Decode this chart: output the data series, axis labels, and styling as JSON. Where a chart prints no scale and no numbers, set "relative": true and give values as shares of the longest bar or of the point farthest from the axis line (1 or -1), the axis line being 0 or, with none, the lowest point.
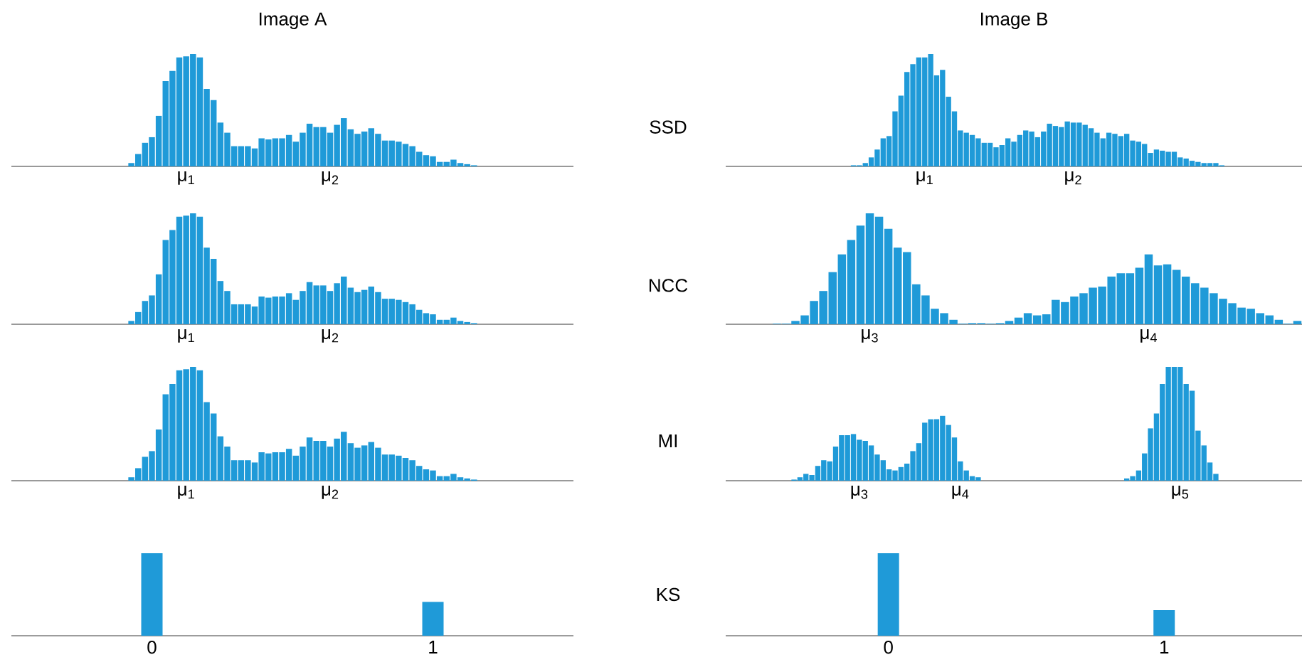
{
  "chart_data": [
    {
      "type": "bar",
      "relative": true,
      "title": "Image A",
      "color": "#1f9ad8",
      "categories": [
        null,
        null,
        null,
        null,
        null,
        null,
        null,
        null,
        "μ$_{1}$",
        null,
        null,
        null,
        null,
        null,
        null,
        null,
        null,
        null,
        null,
        null,
        null,
        null,
        null,
        null,
        null,
        null,
        null,
        null,
        null,
        "μ$_{2}$",
        null,
        null,
        null,
        null,
        null,
        null,
        null,
        null,
        null,
        null,
        null,
        null,
        null,
        null,
        null,
        null,
        null,
        null,
        null,
        null,
        null
      ],
      "values": [
        0.03,
        0.11,
        0.21,
        0.26,
        0.45,
        0.76,
        0.85,
        0.97,
        0.98,
        1.0,
        0.97,
        0.69,
        0.59,
        0.39,
        0.3,
        0.18,
        0.18,
        0.18,
        0.16,
        0.25,
        0.24,
        0.25,
        0.25,
        0.28,
        0.22,
        0.3,
        0.38,
        0.35,
        0.35,
        0.3,
        0.37,
        0.43,
        0.33,
        0.29,
        0.31,
        0.34,
        0.29,
        0.23,
        0.23,
        0.22,
        0.2,
        0.18,
        0.13,
        0.1,
        0.09,
        0.04,
        0.04,
        0.06,
        0.03,
        0.02,
        0.01
      ]
    },
    {
      "type": "bar",
      "relative": true,
      "title": "Image B",
      "ylabel": "SSD",
      "color": "#1f9ad8",
      "categories": [
        null,
        null,
        null,
        null,
        null,
        null,
        null,
        null,
        null,
        null,
        null,
        null,
        "μ$_{1}$",
        null,
        null,
        null,
        null,
        null,
        null,
        null,
        null,
        null,
        null,
        null,
        null,
        null,
        null,
        null,
        null,
        null,
        null,
        null,
        null,
        null,
        null,
        null,
        null,
        "μ$_{2}$",
        null,
        null,
        null,
        null,
        null,
        null,
        null,
        null,
        null,
        null,
        null,
        null,
        null,
        null,
        null,
        null,
        null,
        null,
        null,
        null,
        null,
        null,
        null,
        null,
        null
      ],
      "values": [
        0.01,
        0.01,
        0.03,
        0.08,
        0.15,
        0.25,
        0.27,
        0.49,
        0.63,
        0.84,
        0.91,
        0.97,
        0.97,
        1.0,
        0.81,
        0.86,
        0.62,
        0.49,
        0.32,
        0.3,
        0.28,
        0.25,
        0.21,
        0.21,
        0.17,
        0.19,
        0.25,
        0.22,
        0.28,
        0.32,
        0.31,
        0.26,
        0.31,
        0.38,
        0.36,
        0.35,
        0.4,
        0.39,
        0.39,
        0.37,
        0.34,
        0.3,
        0.25,
        0.3,
        0.29,
        0.27,
        0.29,
        0.23,
        0.22,
        0.2,
        0.12,
        0.15,
        0.14,
        0.13,
        0.13,
        0.08,
        0.07,
        0.05,
        0.04,
        0.03,
        0.03,
        0.03,
        0.01
      ]
    },
    {
      "type": "bar",
      "relative": true,
      "color": "#1f9ad8",
      "categories": [
        null,
        null,
        null,
        null,
        null,
        null,
        null,
        null,
        "μ$_{1}$",
        null,
        null,
        null,
        null,
        null,
        null,
        null,
        null,
        null,
        null,
        null,
        null,
        null,
        null,
        null,
        null,
        null,
        null,
        null,
        null,
        "μ$_{2}$",
        null,
        null,
        null,
        null,
        null,
        null,
        null,
        null,
        null,
        null,
        null,
        null,
        null,
        null,
        null,
        null,
        null,
        null,
        null,
        null,
        null
      ],
      "values": [
        0.03,
        0.11,
        0.21,
        0.26,
        0.45,
        0.76,
        0.85,
        0.97,
        0.98,
        1.0,
        0.97,
        0.69,
        0.59,
        0.39,
        0.3,
        0.18,
        0.18,
        0.18,
        0.16,
        0.25,
        0.24,
        0.25,
        0.25,
        0.28,
        0.22,
        0.3,
        0.38,
        0.35,
        0.35,
        0.3,
        0.37,
        0.43,
        0.33,
        0.29,
        0.31,
        0.34,
        0.29,
        0.23,
        0.23,
        0.22,
        0.2,
        0.18,
        0.13,
        0.1,
        0.09,
        0.04,
        0.04,
        0.06,
        0.03,
        0.02,
        0.01
      ]
    },
    {
      "type": "bar",
      "relative": true,
      "ylabel": "NCC",
      "color": "#1f9ad8",
      "categories": [
        null,
        null,
        null,
        null,
        null,
        null,
        null,
        null,
        null,
        null,
        "μ$_{3}$",
        null,
        null,
        null,
        null,
        null,
        null,
        null,
        null,
        null,
        null,
        null,
        null,
        null,
        null,
        null,
        null,
        null,
        null,
        null,
        null,
        null,
        null,
        null,
        null,
        null,
        null,
        null,
        null,
        null,
        "μ$_{4}$",
        null,
        null,
        null,
        null,
        null,
        null,
        null,
        null,
        null,
        null,
        null,
        null,
        null,
        null,
        null,
        null
      ],
      "values": [
        0.005,
        0.005,
        0.03,
        0.08,
        0.21,
        0.3,
        0.47,
        0.63,
        0.76,
        0.89,
        1.0,
        0.97,
        0.86,
        0.69,
        0.65,
        0.36,
        0.26,
        0.14,
        0.1,
        0.04,
        0.005,
        0.01,
        0.01,
        0.005,
        0.01,
        0.03,
        0.06,
        0.1,
        0.08,
        0.09,
        0.22,
        0.2,
        0.25,
        0.28,
        0.33,
        0.34,
        0.43,
        0.46,
        0.46,
        0.51,
        0.63,
        0.53,
        0.54,
        0.49,
        0.43,
        0.37,
        0.33,
        0.28,
        0.23,
        0.19,
        0.15,
        0.14,
        0.1,
        0.08,
        0.04,
        0.005,
        0.03
      ]
    },
    {
      "type": "bar",
      "relative": true,
      "color": "#1f9ad8",
      "categories": [
        null,
        null,
        null,
        null,
        null,
        null,
        null,
        null,
        "μ$_{1}$",
        null,
        null,
        null,
        null,
        null,
        null,
        null,
        null,
        null,
        null,
        null,
        null,
        null,
        null,
        null,
        null,
        null,
        null,
        null,
        null,
        "μ$_{2}$",
        null,
        null,
        null,
        null,
        null,
        null,
        null,
        null,
        null,
        null,
        null,
        null,
        null,
        null,
        null,
        null,
        null,
        null,
        null,
        null,
        null
      ],
      "values": [
        0.03,
        0.11,
        0.21,
        0.26,
        0.45,
        0.76,
        0.85,
        0.97,
        0.98,
        1.0,
        0.97,
        0.69,
        0.59,
        0.39,
        0.3,
        0.18,
        0.18,
        0.18,
        0.16,
        0.25,
        0.24,
        0.25,
        0.25,
        0.28,
        0.22,
        0.3,
        0.38,
        0.35,
        0.35,
        0.3,
        0.37,
        0.43,
        0.33,
        0.29,
        0.31,
        0.34,
        0.29,
        0.23,
        0.23,
        0.22,
        0.2,
        0.18,
        0.13,
        0.1,
        0.09,
        0.04,
        0.04,
        0.06,
        0.03,
        0.02,
        0.01
      ]
    },
    {
      "type": "bar",
      "relative": true,
      "ylabel": "MI",
      "color": "#1f9ad8",
      "categories": [
        null,
        null,
        null,
        null,
        null,
        null,
        null,
        null,
        null,
        null,
        null,
        "μ$_{3}$",
        null,
        null,
        null,
        null,
        null,
        null,
        null,
        null,
        null,
        null,
        null,
        null,
        null,
        null,
        null,
        null,
        "μ$_{4}$",
        null,
        null,
        null,
        null,
        null,
        null,
        null,
        null,
        null,
        null,
        null,
        null,
        null,
        null,
        null,
        null,
        null,
        null,
        null,
        null,
        null,
        null,
        null,
        null,
        null,
        null,
        null,
        null,
        null,
        null,
        null,
        null,
        null,
        null,
        null,
        null,
        "μ$_{5}$",
        null,
        null,
        null,
        null,
        null,
        null
      ],
      "values": [
        0.01,
        0.03,
        0.06,
        0.05,
        0.13,
        0.18,
        0.17,
        0.3,
        0.4,
        0.4,
        0.41,
        0.36,
        0.35,
        0.31,
        0.23,
        0.18,
        0.1,
        0.09,
        0.12,
        0.15,
        0.26,
        0.33,
        0.51,
        0.54,
        0.54,
        0.57,
        0.49,
        0.38,
        0.17,
        0.09,
        0.04,
        0.03,
        0,
        0,
        0,
        0,
        0,
        0,
        0,
        0,
        0,
        0,
        0,
        0,
        0,
        0,
        0,
        0,
        0,
        0,
        0,
        0,
        0,
        0,
        0,
        0,
        0.02,
        0.04,
        0.09,
        0.24,
        0.46,
        0.59,
        0.85,
        1.0,
        1.0,
        1.0,
        0.85,
        0.79,
        0.44,
        0.31,
        0.16,
        0.06
      ]
    },
    {
      "type": "bar",
      "relative": true,
      "color": "#1f9ad8",
      "categories": [
        "0",
        "1"
      ],
      "values": [
        1.0,
        0.41
      ]
    },
    {
      "type": "bar",
      "relative": true,
      "ylabel": "KS",
      "color": "#1f9ad8",
      "categories": [
        "0",
        "1"
      ],
      "values": [
        1.0,
        0.31
      ]
    }
  ]
}
